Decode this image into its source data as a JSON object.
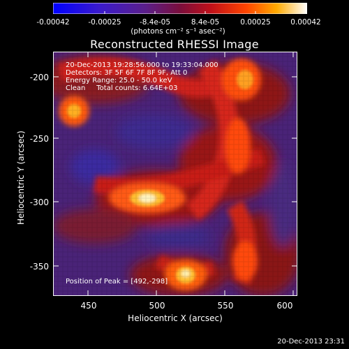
{
  "colorbar": {
    "tick_labels": [
      "-0.00042",
      "-0.00025",
      "-8.4e-05",
      "8.4e-05",
      "0.00025",
      "0.00042"
    ],
    "units": "(photons cm⁻² s⁻¹ asec⁻²)"
  },
  "title": "Reconstructed RHESSI Image",
  "annotations": {
    "time_range": "20-Dec-2013 19:28:56.000 to 19:33:04.000",
    "detectors": "Detectors: 3F 5F 6F 7F 8F 9F, Att 0",
    "energy": "Energy Range: 25.0 - 50.0 keV",
    "clean": "Clean     Total counts: 6.64E+03",
    "peak": "Position of Peak = [492,-298]"
  },
  "axes": {
    "xlabel": "Heliocentric X (arcsec)",
    "ylabel": "Heliocentric Y (arcsec)",
    "x_ticks": [
      "450",
      "500",
      "550",
      "600"
    ],
    "y_ticks": [
      "-200",
      "-250",
      "-300",
      "-350"
    ]
  },
  "timestamp": "20-Dec-2013 23:31"
}
